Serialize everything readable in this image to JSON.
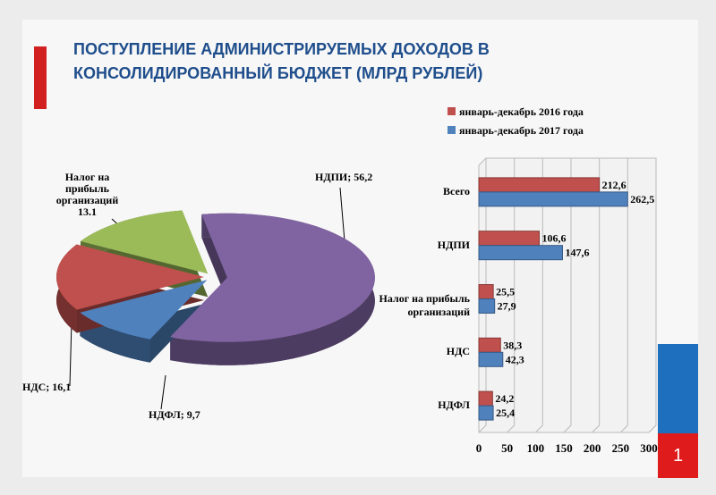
{
  "title": "ПОСТУПЛЕНИЕ АДМИНИСТРИРУЕМЫХ ДОХОДОВ В КОНСОЛИДИРОВАННЫЙ БЮДЖЕТ (МЛРД РУБЛЕЙ)",
  "slide_number": "1",
  "chart_data": [
    {
      "type": "pie",
      "values": [
        56.2,
        9.7,
        16.1,
        13.1
      ],
      "value_labels": [
        "НДПИ; 56,2",
        "НДФЛ; 9,7",
        "НДС; 16,1",
        "Налог на прибыль организаций 13.1"
      ],
      "colors": [
        "#8064a2",
        "#4f81bd",
        "#c0504d",
        "#9bbb59"
      ]
    },
    {
      "type": "barh",
      "categories": [
        "Всего",
        "НДПИ",
        "Налог на прибыль организаций",
        "НДС",
        "НДФЛ"
      ],
      "series": [
        {
          "name": "январь-декабрь 2016 года",
          "color": "#c0504d",
          "values": [
            212.6,
            106.6,
            25.5,
            38.3,
            24.2
          ],
          "value_labels": [
            "212,6",
            "106,6",
            "25,5",
            "38,3",
            "24,2"
          ]
        },
        {
          "name": "январь-декабрь 2017 года",
          "color": "#4f81bd",
          "values": [
            262.5,
            147.6,
            27.9,
            42.3,
            25.4
          ],
          "value_labels": [
            "262,5",
            "147,6",
            "27,9",
            "42,3",
            "25,4"
          ]
        }
      ],
      "xlim": [
        0,
        300
      ],
      "xticks": [
        0,
        50,
        100,
        150,
        200,
        250,
        300
      ],
      "grid": true
    }
  ]
}
